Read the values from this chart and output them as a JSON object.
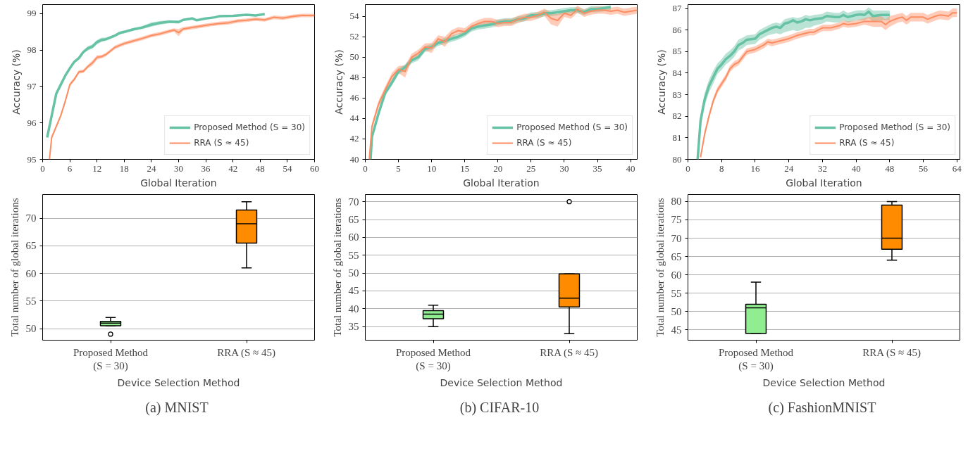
{
  "chart_data": [
    {
      "type": "line",
      "xlabel": "Global Iteration",
      "ylabel": "Accuracy (%)",
      "xlim": [
        0,
        60
      ],
      "ylim": [
        95,
        99.25
      ],
      "xticks": [
        0,
        6,
        12,
        18,
        24,
        30,
        36,
        42,
        48,
        54,
        60
      ],
      "yticks": [
        95,
        96,
        97,
        98,
        99
      ],
      "grid": false,
      "legend": "bottom right",
      "series": [
        {
          "name": "Proposed Method (S = 30)",
          "color": "#66c2a5",
          "x": [
            1,
            2,
            3,
            4,
            5,
            6,
            7,
            8,
            9,
            10,
            11,
            12,
            13,
            14,
            15,
            16,
            17,
            18,
            20,
            22,
            24,
            26,
            28,
            30,
            31,
            33,
            34,
            36,
            38,
            39,
            42,
            45,
            47,
            49
          ],
          "values": [
            95.6,
            96.2,
            96.8,
            97.05,
            97.3,
            97.5,
            97.68,
            97.78,
            97.95,
            98.05,
            98.1,
            98.22,
            98.28,
            98.3,
            98.35,
            98.4,
            98.47,
            98.5,
            98.57,
            98.62,
            98.7,
            98.75,
            98.78,
            98.77,
            98.83,
            98.87,
            98.82,
            98.87,
            98.9,
            98.93,
            98.94,
            98.97,
            98.95,
            98.99
          ],
          "lower": [
            95.56,
            96.16,
            96.76,
            97.01,
            97.26,
            97.46,
            97.64,
            97.74,
            97.91,
            97.99,
            98.04,
            98.16,
            98.22,
            98.26,
            98.31,
            98.36,
            98.43,
            98.46,
            98.53,
            98.58,
            98.64,
            98.7,
            98.74,
            98.73,
            98.8,
            98.84,
            98.8,
            98.85,
            98.88,
            98.91,
            98.92,
            98.95,
            98.93,
            98.97
          ],
          "upper": [
            95.64,
            96.24,
            96.84,
            97.09,
            97.34,
            97.54,
            97.72,
            97.82,
            97.99,
            98.11,
            98.16,
            98.28,
            98.34,
            98.34,
            98.39,
            98.44,
            98.51,
            98.54,
            98.61,
            98.66,
            98.76,
            98.8,
            98.82,
            98.81,
            98.86,
            98.9,
            98.84,
            98.89,
            98.92,
            98.95,
            98.96,
            98.99,
            98.97,
            99.01
          ]
        },
        {
          "name": "RRA (S ≈ 45)",
          "color": "#fc8d62",
          "x": [
            1.5,
            2,
            3,
            4,
            5,
            6,
            7,
            8,
            9,
            10,
            11,
            12,
            13,
            14,
            15,
            16,
            18,
            20,
            22,
            24,
            26,
            28,
            29,
            30,
            31,
            33,
            35,
            37,
            39,
            41,
            43,
            45,
            47,
            49,
            51,
            53,
            55,
            57,
            60
          ],
          "values": [
            95.0,
            95.6,
            95.9,
            96.2,
            96.6,
            97.05,
            97.2,
            97.4,
            97.42,
            97.55,
            97.65,
            97.8,
            97.82,
            97.88,
            97.98,
            98.08,
            98.18,
            98.25,
            98.32,
            98.4,
            98.45,
            98.52,
            98.55,
            98.48,
            98.58,
            98.62,
            98.66,
            98.7,
            98.73,
            98.75,
            98.8,
            98.82,
            98.85,
            98.83,
            98.9,
            98.88,
            98.92,
            98.95,
            98.95
          ],
          "lower": [
            95.0,
            95.55,
            95.85,
            96.15,
            96.55,
            97.0,
            97.15,
            97.35,
            97.37,
            97.5,
            97.58,
            97.74,
            97.77,
            97.83,
            97.93,
            98.03,
            98.13,
            98.2,
            98.27,
            98.35,
            98.4,
            98.47,
            98.5,
            98.38,
            98.53,
            98.57,
            98.61,
            98.65,
            98.68,
            98.7,
            98.75,
            98.77,
            98.8,
            98.78,
            98.85,
            98.83,
            98.87,
            98.9,
            98.9
          ],
          "upper": [
            95.05,
            95.65,
            95.95,
            96.25,
            96.65,
            97.1,
            97.25,
            97.45,
            97.47,
            97.6,
            97.72,
            97.86,
            97.87,
            97.93,
            98.03,
            98.13,
            98.23,
            98.3,
            98.37,
            98.45,
            98.5,
            98.57,
            98.6,
            98.58,
            98.63,
            98.67,
            98.71,
            98.75,
            98.78,
            98.8,
            98.85,
            98.87,
            98.9,
            98.88,
            98.95,
            98.93,
            98.97,
            99.0,
            99.0
          ]
        }
      ]
    },
    {
      "type": "line",
      "xlabel": "Global Iteration",
      "ylabel": "Accuracy (%)",
      "xlim": [
        0,
        41
      ],
      "ylim": [
        40,
        55.15
      ],
      "xticks": [
        0,
        5,
        10,
        15,
        20,
        25,
        30,
        35,
        40
      ],
      "yticks": [
        40,
        42,
        44,
        46,
        48,
        50,
        52,
        54
      ],
      "grid": false,
      "legend": "bottom right",
      "series": [
        {
          "name": "Proposed Method (S = 30)",
          "color": "#66c2a5",
          "x": [
            0.8,
            1,
            2,
            3,
            4,
            5,
            6,
            7,
            8,
            9,
            10,
            11,
            12,
            13,
            14,
            15,
            16,
            17,
            18,
            19,
            20,
            21,
            22,
            23,
            24,
            25,
            26,
            27,
            28,
            29,
            30,
            31,
            32,
            33,
            34,
            35,
            36,
            37
          ],
          "values": [
            40.0,
            42.2,
            44.5,
            46.5,
            47.5,
            48.6,
            49.0,
            49.7,
            50.0,
            50.8,
            51.0,
            51.4,
            51.6,
            51.8,
            52.0,
            52.3,
            52.8,
            53.0,
            53.1,
            53.2,
            53.4,
            53.5,
            53.5,
            53.7,
            53.8,
            54.1,
            54.1,
            54.3,
            54.3,
            54.4,
            54.5,
            54.6,
            54.6,
            54.4,
            54.7,
            54.7,
            54.8,
            54.9
          ],
          "lower": [
            40.0,
            41.9,
            44.2,
            46.2,
            47.2,
            48.3,
            48.7,
            49.4,
            49.7,
            50.5,
            50.7,
            51.1,
            51.3,
            51.5,
            51.7,
            52.0,
            52.5,
            52.7,
            52.8,
            52.9,
            53.1,
            53.2,
            53.2,
            53.4,
            53.5,
            53.8,
            53.8,
            54.0,
            54.0,
            54.1,
            54.2,
            54.3,
            54.3,
            54.1,
            54.4,
            54.4,
            54.5,
            54.6
          ],
          "upper": [
            40.0,
            42.5,
            44.8,
            46.8,
            47.8,
            48.9,
            49.3,
            50.0,
            50.3,
            51.1,
            51.3,
            51.7,
            51.9,
            52.1,
            52.3,
            52.6,
            53.1,
            53.3,
            53.4,
            53.5,
            53.7,
            53.8,
            53.8,
            54.0,
            54.1,
            54.4,
            54.4,
            54.6,
            54.6,
            54.7,
            54.8,
            54.9,
            54.9,
            54.7,
            55.0,
            55.0,
            55.0,
            55.1
          ]
        },
        {
          "name": "RRA (S ≈ 45)",
          "color": "#fc8d62",
          "x": [
            0.6,
            1,
            2,
            3,
            4,
            5,
            6,
            7,
            8,
            9,
            10,
            11,
            12,
            13,
            14,
            15,
            16,
            17,
            18,
            19,
            20,
            21,
            22,
            23,
            24,
            25,
            26,
            27,
            28,
            29,
            30,
            31,
            32,
            33,
            34,
            35,
            36,
            37,
            38,
            39,
            40,
            41
          ],
          "values": [
            40.0,
            43.2,
            45.4,
            46.8,
            48.1,
            48.8,
            48.6,
            50.0,
            50.4,
            51.0,
            50.9,
            51.8,
            51.5,
            52.3,
            52.6,
            52.5,
            53.0,
            53.3,
            53.5,
            53.5,
            53.3,
            53.4,
            53.4,
            53.7,
            53.9,
            53.9,
            54.1,
            54.4,
            53.8,
            53.6,
            54.3,
            54.1,
            54.7,
            54.3,
            54.5,
            54.6,
            54.6,
            54.5,
            54.6,
            54.4,
            54.5,
            54.6
          ],
          "lower": [
            40.0,
            42.85,
            45.05,
            46.45,
            47.75,
            48.45,
            48.0,
            49.65,
            50.05,
            50.65,
            50.4,
            51.45,
            51.0,
            51.95,
            52.25,
            52.15,
            52.65,
            52.95,
            53.15,
            53.15,
            52.95,
            53.05,
            53.05,
            53.35,
            53.55,
            53.55,
            53.75,
            54.05,
            53.2,
            53.0,
            53.95,
            53.75,
            54.35,
            53.95,
            54.15,
            54.25,
            54.25,
            54.15,
            54.25,
            54.05,
            54.15,
            54.25
          ],
          "upper": [
            40.0,
            43.55,
            45.75,
            47.15,
            48.45,
            49.15,
            49.2,
            50.35,
            50.75,
            51.35,
            51.4,
            52.15,
            52.0,
            52.65,
            52.95,
            52.85,
            53.35,
            53.65,
            53.85,
            53.85,
            53.65,
            53.75,
            53.75,
            54.05,
            54.25,
            54.25,
            54.45,
            54.75,
            54.4,
            54.2,
            54.65,
            54.45,
            55.05,
            54.65,
            54.85,
            54.95,
            54.95,
            54.85,
            54.95,
            54.75,
            54.85,
            54.95
          ]
        }
      ]
    },
    {
      "type": "line",
      "xlabel": "Global Iteration",
      "ylabel": "Accuracy (%)",
      "xlim": [
        0,
        64.7
      ],
      "ylim": [
        80,
        87.18
      ],
      "xticks": [
        0,
        8,
        16,
        24,
        32,
        40,
        48,
        56,
        64
      ],
      "yticks": [
        80,
        81,
        82,
        83,
        84,
        85,
        86,
        87
      ],
      "grid": false,
      "legend": "bottom right",
      "series": [
        {
          "name": "Proposed Method (S = 30)",
          "color": "#66c2a5",
          "x": [
            2.3,
            3,
            4,
            5,
            6,
            7,
            8,
            9,
            10,
            11,
            12,
            13,
            14,
            16,
            17,
            18,
            19,
            20,
            21,
            22,
            23,
            24,
            25,
            26,
            27,
            28,
            29,
            30,
            32,
            33,
            35,
            36,
            37,
            38,
            40,
            41,
            42,
            43,
            44,
            46,
            48
          ],
          "values": [
            80.0,
            81.8,
            82.8,
            83.4,
            83.8,
            84.2,
            84.4,
            84.65,
            84.8,
            85.0,
            85.3,
            85.4,
            85.55,
            85.6,
            85.8,
            85.9,
            86.0,
            86.1,
            86.15,
            86.1,
            86.3,
            86.35,
            86.45,
            86.35,
            86.4,
            86.5,
            86.45,
            86.5,
            86.55,
            86.65,
            86.6,
            86.6,
            86.7,
            86.6,
            86.7,
            86.72,
            86.7,
            86.85,
            86.65,
            86.7,
            86.7
          ],
          "lower": [
            80.0,
            81.5,
            82.5,
            83.1,
            83.5,
            83.95,
            84.15,
            84.4,
            84.55,
            84.75,
            85.05,
            85.15,
            85.3,
            85.35,
            85.55,
            85.65,
            85.75,
            85.8,
            85.85,
            85.8,
            85.9,
            85.95,
            86.0,
            85.95,
            86.0,
            86.1,
            86.1,
            86.2,
            86.3,
            86.4,
            86.35,
            86.35,
            86.45,
            86.35,
            86.45,
            86.45,
            86.45,
            86.55,
            86.4,
            86.45,
            86.45
          ],
          "upper": [
            80.0,
            82.1,
            83.1,
            83.7,
            84.1,
            84.45,
            84.65,
            84.9,
            85.05,
            85.25,
            85.55,
            85.65,
            85.75,
            85.8,
            86.0,
            86.1,
            86.2,
            86.3,
            86.35,
            86.3,
            86.5,
            86.55,
            86.6,
            86.55,
            86.6,
            86.7,
            86.65,
            86.7,
            86.75,
            86.85,
            86.8,
            86.8,
            86.9,
            86.8,
            86.9,
            86.92,
            86.9,
            87.05,
            86.9,
            86.9,
            86.9
          ]
        },
        {
          "name": "RRA (S ≈ 45)",
          "color": "#fc8d62",
          "x": [
            3,
            4,
            5,
            6,
            7,
            8,
            9,
            10,
            11,
            12,
            13,
            14,
            15,
            16,
            18,
            19,
            20,
            22,
            24,
            26,
            28,
            29,
            30,
            32,
            34,
            36,
            37,
            38,
            40,
            42,
            44,
            46,
            47,
            48,
            50,
            51,
            52,
            53,
            55,
            56,
            57,
            59,
            60,
            62,
            63,
            64
          ],
          "values": [
            80.1,
            81.2,
            82.0,
            82.7,
            83.2,
            83.5,
            83.8,
            84.2,
            84.4,
            84.5,
            84.75,
            85.0,
            85.05,
            85.1,
            85.3,
            85.45,
            85.4,
            85.5,
            85.6,
            85.75,
            85.85,
            85.9,
            85.9,
            86.1,
            86.1,
            86.2,
            86.3,
            86.25,
            86.3,
            86.4,
            86.4,
            86.4,
            86.25,
            86.4,
            86.55,
            86.6,
            86.45,
            86.6,
            86.6,
            86.6,
            86.5,
            86.65,
            86.7,
            86.65,
            86.8,
            86.8
          ],
          "lower": [
            80.0,
            81.05,
            81.85,
            82.55,
            83.05,
            83.35,
            83.65,
            84.05,
            84.25,
            84.35,
            84.6,
            84.85,
            84.9,
            84.95,
            85.15,
            85.3,
            85.25,
            85.35,
            85.45,
            85.6,
            85.7,
            85.75,
            85.75,
            85.95,
            85.95,
            86.05,
            86.15,
            86.1,
            86.15,
            86.25,
            86.15,
            86.15,
            86.0,
            86.15,
            86.35,
            86.4,
            86.25,
            86.4,
            86.4,
            86.4,
            86.3,
            86.45,
            86.5,
            86.45,
            86.6,
            86.6
          ],
          "upper": [
            80.25,
            81.35,
            82.15,
            82.85,
            83.35,
            83.65,
            83.95,
            84.35,
            84.55,
            84.65,
            84.9,
            85.15,
            85.2,
            85.25,
            85.45,
            85.6,
            85.55,
            85.65,
            85.75,
            85.9,
            86.0,
            86.05,
            86.05,
            86.25,
            86.25,
            86.35,
            86.45,
            86.4,
            86.45,
            86.55,
            86.65,
            86.65,
            86.5,
            86.65,
            86.75,
            86.8,
            86.65,
            86.8,
            86.8,
            86.8,
            86.7,
            86.85,
            86.9,
            86.85,
            87.0,
            87.0
          ]
        }
      ]
    },
    {
      "type": "box",
      "xlabel": "Device Selection Method",
      "ylabel": "Total number of global iterations",
      "categories": [
        "Proposed Method\n(S = 30)",
        "RRA (S ≈ 45)"
      ],
      "colors": [
        "#90ee90",
        "#ff8c00"
      ],
      "ylim": [
        47.9,
        74.3
      ],
      "yticks": [
        50,
        55,
        60,
        65,
        70
      ],
      "grid": "y",
      "annotations": [
        "(a)  MNIST"
      ],
      "boxes": [
        {
          "low": 50.5,
          "q1": 50.5,
          "median": 51.0,
          "q3": 51.3,
          "high": 52,
          "outliers": [
            49
          ]
        },
        {
          "low": 61,
          "q1": 65.5,
          "median": 69,
          "q3": 71.5,
          "high": 73
        }
      ]
    },
    {
      "type": "box",
      "xlabel": "Device Selection Method",
      "ylabel": "Total number of global iterations",
      "categories": [
        "Proposed Method\n(S = 30)",
        "RRA (S ≈ 45)"
      ],
      "colors": [
        "#90ee90",
        "#ff8c00"
      ],
      "ylim": [
        31.2,
        72
      ],
      "yticks": [
        35,
        40,
        45,
        50,
        55,
        60,
        65,
        70
      ],
      "grid": "y",
      "annotations": [
        "(b)  CIFAR-10"
      ],
      "boxes": [
        {
          "low": 35,
          "q1": 37.2,
          "median": 38.5,
          "q3": 39.5,
          "high": 41
        },
        {
          "low": 33,
          "q1": 40.5,
          "median": 43,
          "q3": 49.8,
          "high": 49.8,
          "outliers": [
            70
          ]
        }
      ]
    },
    {
      "type": "box",
      "xlabel": "Device Selection Method",
      "ylabel": "Total number of global iterations",
      "categories": [
        "Proposed Method\n(S = 30)",
        "RRA (S ≈ 45)"
      ],
      "colors": [
        "#90ee90",
        "#ff8c00"
      ],
      "ylim": [
        42.2,
        81.9
      ],
      "yticks": [
        45,
        50,
        55,
        60,
        65,
        70,
        75,
        80
      ],
      "grid": "y",
      "annotations": [
        "(c)  FashionMNIST"
      ],
      "boxes": [
        {
          "low": 44,
          "q1": 44,
          "median": 51,
          "q3": 52,
          "high": 58
        },
        {
          "low": 64,
          "q1": 67,
          "median": 70,
          "q3": 79,
          "high": 80
        }
      ]
    }
  ]
}
